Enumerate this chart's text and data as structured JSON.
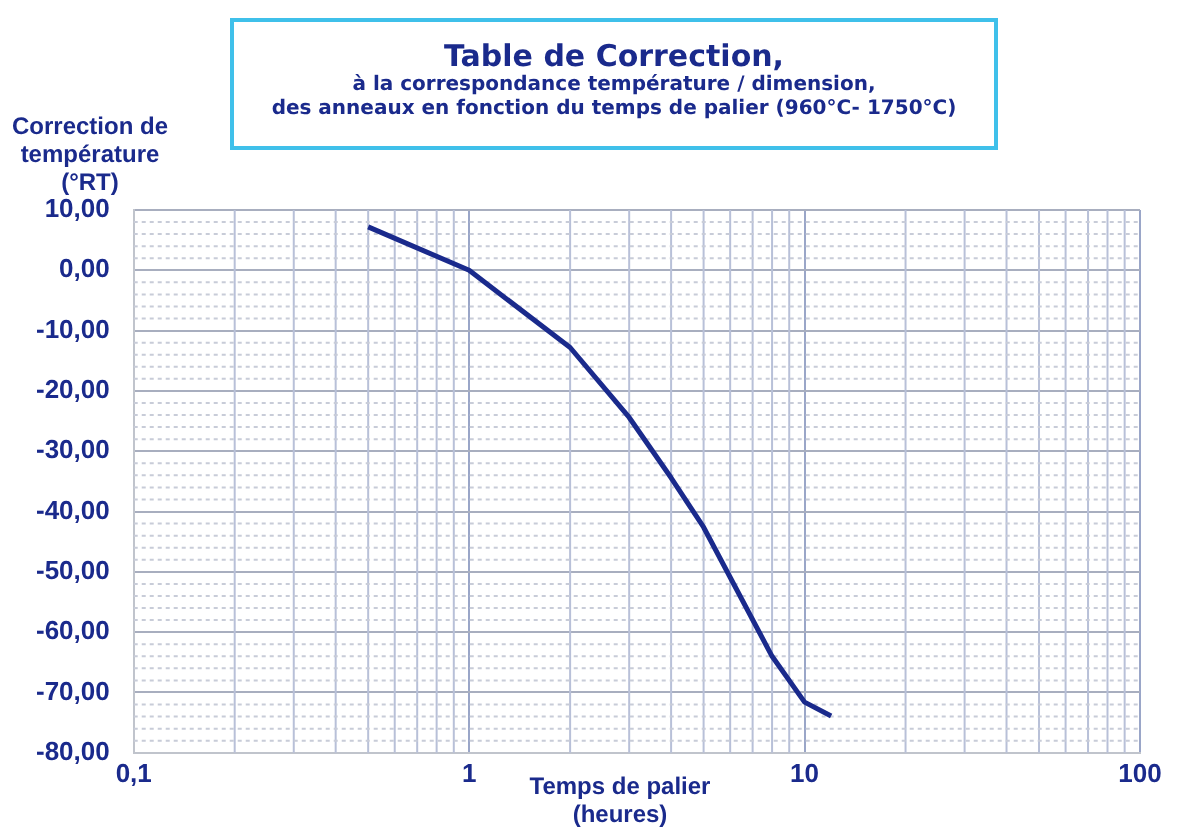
{
  "chart_data": {
    "type": "line",
    "title": "Table de Correction,",
    "subtitle": "à la correspondance température / dimension,\ndes anneaux en fonction du temps de palier (960°C- 1750°C)",
    "xlabel": "Temps de palier\n(heures)",
    "ylabel": "Correction de\ntempérature\n(°RT)",
    "log": "x",
    "grid": true,
    "legend": false,
    "marker": "none",
    "line_style": "solid",
    "xlim": [
      0.1,
      100
    ],
    "xticks": [
      {
        "value": 0.1,
        "label": "0,1"
      },
      1,
      10,
      100
    ],
    "ylim": [
      -80,
      10
    ],
    "yticks": [
      {
        "value": 10,
        "label": "10,00"
      },
      {
        "value": 0,
        "label": "0,00"
      },
      {
        "value": -10,
        "label": "-10,00"
      },
      {
        "value": -20,
        "label": "-20,00"
      },
      {
        "value": -30,
        "label": "-30,00"
      },
      {
        "value": -40,
        "label": "-40,00"
      },
      {
        "value": -50,
        "label": "-50,00"
      },
      {
        "value": -60,
        "label": "-60,00"
      },
      {
        "value": -70,
        "label": "-70,00"
      },
      {
        "value": -80,
        "label": "-80,00"
      }
    ],
    "series": [
      {
        "color": "#1a2a8c",
        "x": [
          0.5,
          1,
          2,
          3,
          4,
          5,
          8,
          10,
          12
        ],
        "values": [
          7.2,
          0,
          -12.8,
          -24.4,
          -34.4,
          -42.6,
          -64,
          -71.6,
          -73.9
        ]
      }
    ]
  }
}
